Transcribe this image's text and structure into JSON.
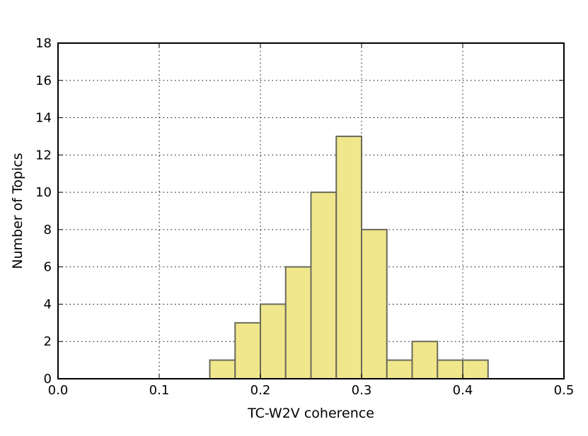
{
  "chart_data": {
    "type": "bar",
    "title": "",
    "xlabel": "TC-W2V coherence",
    "ylabel": "Number of Topics",
    "xlim": [
      0.0,
      0.5
    ],
    "ylim": [
      0,
      18
    ],
    "xticks": [
      "0.0",
      "0.1",
      "0.2",
      "0.3",
      "0.4",
      "0.5"
    ],
    "xtick_values": [
      0.0,
      0.1,
      0.2,
      0.3,
      0.4,
      0.5
    ],
    "yticks": [
      "0",
      "2",
      "4",
      "6",
      "8",
      "10",
      "12",
      "14",
      "16",
      "18"
    ],
    "ytick_values": [
      0,
      2,
      4,
      6,
      8,
      10,
      12,
      14,
      16,
      18
    ],
    "grid": true,
    "bin_edges": [
      0.15,
      0.175,
      0.2,
      0.225,
      0.25,
      0.275,
      0.3,
      0.325,
      0.35,
      0.375,
      0.4,
      0.425
    ],
    "values": [
      1,
      3,
      4,
      6,
      10,
      13,
      8,
      1,
      2,
      1,
      1
    ],
    "bar_color": "#f0e68c",
    "edge_color": "#6b6b5a"
  }
}
